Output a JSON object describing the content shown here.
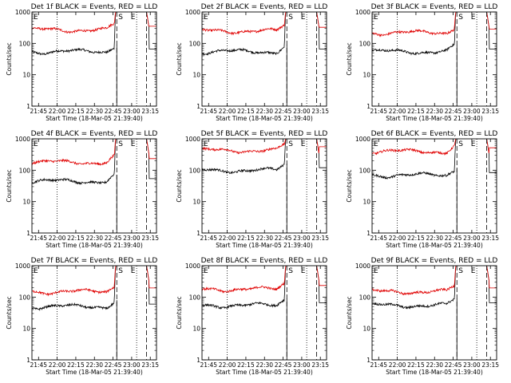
{
  "window": {
    "title": ""
  },
  "colors": {
    "events": "#000000",
    "lld": "#e00000",
    "axes": "#000000",
    "background": "#ffffff"
  },
  "chart_data": [
    {
      "type": "line",
      "title": "Det 1f BLACK = Events, RED = LLD",
      "xlabel": "Start Time (18-Mar-05 21:39:40)",
      "ylabel": "Counts/sec",
      "xlim": [
        "21:39:40",
        "23:20"
      ],
      "ylim": [
        1,
        1000
      ],
      "yscale": "log",
      "xticks": [
        "21:45",
        "22:00",
        "22:15",
        "22:30",
        "22:45",
        "23:00",
        "23:15"
      ],
      "yticks": [
        "1",
        "10",
        "100",
        "1000"
      ],
      "series": [
        {
          "color": "#000000",
          "base": 55,
          "peak": 1000
        },
        {
          "color": "#e00000",
          "base": 270,
          "peak": 1000
        }
      ],
      "annotations": [
        "E",
        "S",
        "E"
      ],
      "legend": "none",
      "grid": false
    },
    {
      "type": "line",
      "title": "Det 2f BLACK = Events, RED = LLD",
      "xlabel": "Start Time (18-Mar-05 21:39:40)",
      "ylabel": "Counts/sec",
      "xlim": [
        "21:39:40",
        "23:20"
      ],
      "ylim": [
        1,
        1000
      ],
      "yscale": "log",
      "xticks": [
        "21:45",
        "22:00",
        "22:15",
        "22:30",
        "22:45",
        "23:00",
        "23:15"
      ],
      "yticks": [
        "1",
        "10",
        "100",
        "1000"
      ],
      "series": [
        {
          "color": "#000000",
          "base": 55,
          "peak": 1000
        },
        {
          "color": "#e00000",
          "base": 250,
          "peak": 1000
        }
      ],
      "annotations": [
        "E",
        "S",
        "E"
      ],
      "legend": "none",
      "grid": false
    },
    {
      "type": "line",
      "title": "Det 3f BLACK = Events, RED = LLD",
      "xlabel": "Start Time (18-Mar-05 21:39:40)",
      "ylabel": "Counts/sec",
      "xlim": [
        "21:39:40",
        "23:20"
      ],
      "ylim": [
        1,
        1000
      ],
      "yscale": "log",
      "xticks": [
        "21:45",
        "22:00",
        "22:15",
        "22:30",
        "22:45",
        "23:00",
        "23:15"
      ],
      "yticks": [
        "1",
        "10",
        "100",
        "1000"
      ],
      "series": [
        {
          "color": "#000000",
          "base": 55,
          "peak": 1000
        },
        {
          "color": "#e00000",
          "base": 220,
          "peak": 1000
        }
      ],
      "annotations": [
        "E",
        "S",
        "E"
      ],
      "legend": "none",
      "grid": false
    },
    {
      "type": "line",
      "title": "Det 4f BLACK = Events, RED = LLD",
      "xlabel": "Start Time (18-Mar-05 21:39:40)",
      "ylabel": "Counts/sec",
      "xlim": [
        "21:39:40",
        "23:20"
      ],
      "ylim": [
        1,
        1000
      ],
      "yscale": "log",
      "xticks": [
        "21:45",
        "22:00",
        "22:15",
        "22:30",
        "22:45",
        "23:00",
        "23:15"
      ],
      "yticks": [
        "1",
        "10",
        "100",
        "1000"
      ],
      "series": [
        {
          "color": "#000000",
          "base": 45,
          "peak": 1000
        },
        {
          "color": "#e00000",
          "base": 180,
          "peak": 1000
        }
      ],
      "annotations": [
        "E",
        "S",
        "E"
      ],
      "legend": "none",
      "grid": false
    },
    {
      "type": "line",
      "title": "Det 5f BLACK = Events, RED = LLD",
      "xlabel": "Start Time (18-Mar-05 21:39:40)",
      "ylabel": "Counts/sec",
      "xlim": [
        "21:39:40",
        "23:20"
      ],
      "ylim": [
        1,
        1000
      ],
      "yscale": "log",
      "xticks": [
        "21:45",
        "22:00",
        "22:15",
        "22:30",
        "22:45",
        "23:00",
        "23:15"
      ],
      "yticks": [
        "1",
        "10",
        "100",
        "1000"
      ],
      "series": [
        {
          "color": "#000000",
          "base": 100,
          "peak": 1000
        },
        {
          "color": "#e00000",
          "base": 430,
          "peak": 1000
        }
      ],
      "annotations": [
        "E",
        "S",
        "E"
      ],
      "legend": "none",
      "grid": false
    },
    {
      "type": "line",
      "title": "Det 6f BLACK = Events, RED = LLD",
      "xlabel": "Start Time (18-Mar-05 21:39:40)",
      "ylabel": "Counts/sec",
      "xlim": [
        "21:39:40",
        "23:20"
      ],
      "ylim": [
        1,
        1000
      ],
      "yscale": "log",
      "xticks": [
        "21:45",
        "22:00",
        "22:15",
        "22:30",
        "22:45",
        "23:00",
        "23:15"
      ],
      "yticks": [
        "1",
        "10",
        "100",
        "1000"
      ],
      "series": [
        {
          "color": "#000000",
          "base": 70,
          "peak": 1000
        },
        {
          "color": "#e00000",
          "base": 400,
          "peak": 1000
        }
      ],
      "annotations": [
        "E",
        "S",
        "E"
      ],
      "legend": "none",
      "grid": false
    },
    {
      "type": "line",
      "title": "Det 7f BLACK = Events, RED = LLD",
      "xlabel": "Start Time (18-Mar-05 21:39:40)",
      "ylabel": "Counts/sec",
      "xlim": [
        "21:39:40",
        "23:20"
      ],
      "ylim": [
        1,
        1000
      ],
      "yscale": "log",
      "xticks": [
        "21:45",
        "22:00",
        "22:15",
        "22:30",
        "22:45",
        "23:00",
        "23:15"
      ],
      "yticks": [
        "1",
        "10",
        "100",
        "1000"
      ],
      "series": [
        {
          "color": "#000000",
          "base": 50,
          "peak": 1000
        },
        {
          "color": "#e00000",
          "base": 150,
          "peak": 1000
        }
      ],
      "annotations": [
        "E",
        "S",
        "E"
      ],
      "legend": "none",
      "grid": false
    },
    {
      "type": "line",
      "title": "Det 8f BLACK = Events, RED = LLD",
      "xlabel": "Start Time (18-Mar-05 21:39:40)",
      "ylabel": "Counts/sec",
      "xlim": [
        "21:39:40",
        "23:20"
      ],
      "ylim": [
        1,
        1000
      ],
      "yscale": "log",
      "xticks": [
        "21:45",
        "22:00",
        "22:15",
        "22:30",
        "22:45",
        "23:00",
        "23:15"
      ],
      "yticks": [
        "1",
        "10",
        "100",
        "1000"
      ],
      "series": [
        {
          "color": "#000000",
          "base": 55,
          "peak": 1000
        },
        {
          "color": "#e00000",
          "base": 180,
          "peak": 1000
        }
      ],
      "annotations": [
        "E",
        "S",
        "E"
      ],
      "legend": "none",
      "grid": false
    },
    {
      "type": "line",
      "title": "Det 9f BLACK = Events, RED = LLD",
      "xlabel": "Start Time (18-Mar-05 21:39:40)",
      "ylabel": "Counts/sec",
      "xlim": [
        "21:39:40",
        "23:20"
      ],
      "ylim": [
        1,
        1000
      ],
      "yscale": "log",
      "xticks": [
        "21:45",
        "22:00",
        "22:15",
        "22:30",
        "22:45",
        "23:00",
        "23:15"
      ],
      "yticks": [
        "1",
        "10",
        "100",
        "1000"
      ],
      "series": [
        {
          "color": "#000000",
          "base": 55,
          "peak": 1000
        },
        {
          "color": "#e00000",
          "base": 150,
          "peak": 1000
        }
      ],
      "annotations": [
        "E",
        "S",
        "E"
      ],
      "legend": "none",
      "grid": false
    }
  ]
}
